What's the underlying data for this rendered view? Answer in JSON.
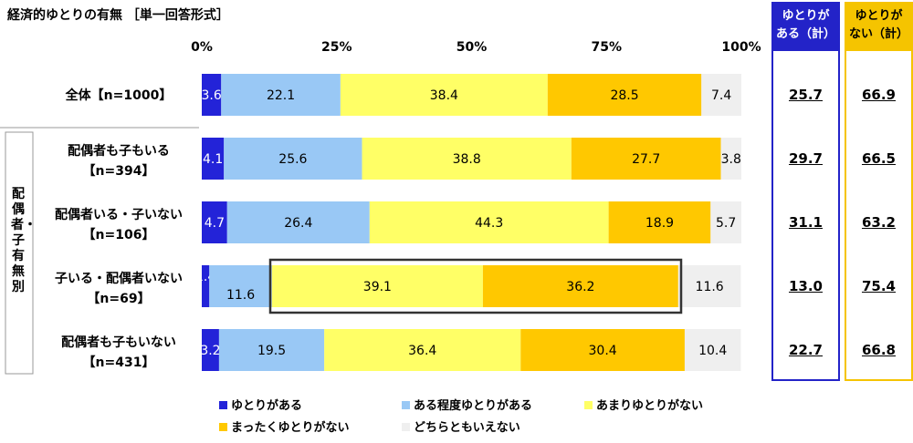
{
  "title": "経済的ゆとりの有無 ［単一回答形式］",
  "colors": {
    "series": [
      "#2323d8",
      "#99c8f5",
      "#ffff66",
      "#ffc800",
      "#efefef"
    ],
    "box_yes": "#2323c8",
    "box_no": "#f5c400"
  },
  "side_label": "配偶者・子有無別",
  "summary": {
    "yes_header": [
      "ゆとりが",
      "ある（計）"
    ],
    "no_header": [
      "ゆとりが",
      "ない（計）"
    ]
  },
  "chart_data": {
    "type": "bar",
    "orientation": "horizontal",
    "stacked": "100%",
    "x_ticks": [
      "0%",
      "25%",
      "50%",
      "75%",
      "100%"
    ],
    "xlim": [
      0,
      100
    ],
    "categories": [
      [
        "全体【n=1000】"
      ],
      [
        "配偶者も子もいる",
        "【n=394】"
      ],
      [
        "配偶者いる・子いない",
        "【n=106】"
      ],
      [
        "子いる・配偶者いない",
        "【n=69】"
      ],
      [
        "配偶者も子もいない",
        "【n=431】"
      ]
    ],
    "series": [
      {
        "name": "ゆとりがある",
        "values": [
          3.6,
          4.1,
          4.7,
          1.4,
          3.2
        ]
      },
      {
        "name": "ある程度ゆとりがある",
        "values": [
          22.1,
          25.6,
          26.4,
          11.6,
          19.5
        ]
      },
      {
        "name": "あまりゆとりがない",
        "values": [
          38.4,
          38.8,
          44.3,
          39.1,
          36.4
        ]
      },
      {
        "name": "まったくゆとりがない",
        "values": [
          28.5,
          27.7,
          18.9,
          36.2,
          30.4
        ]
      },
      {
        "name": "どちらともいえない",
        "values": [
          7.4,
          3.8,
          5.7,
          11.6,
          10.4
        ]
      }
    ],
    "summary_yes": [
      "25.7",
      "29.7",
      "31.1",
      "13.0",
      "22.7"
    ],
    "summary_no": [
      "66.9",
      "66.5",
      "63.2",
      "75.4",
      "66.8"
    ],
    "highlight_row": 3,
    "highlight_series": [
      2,
      3
    ],
    "legend_position": "bottom"
  }
}
